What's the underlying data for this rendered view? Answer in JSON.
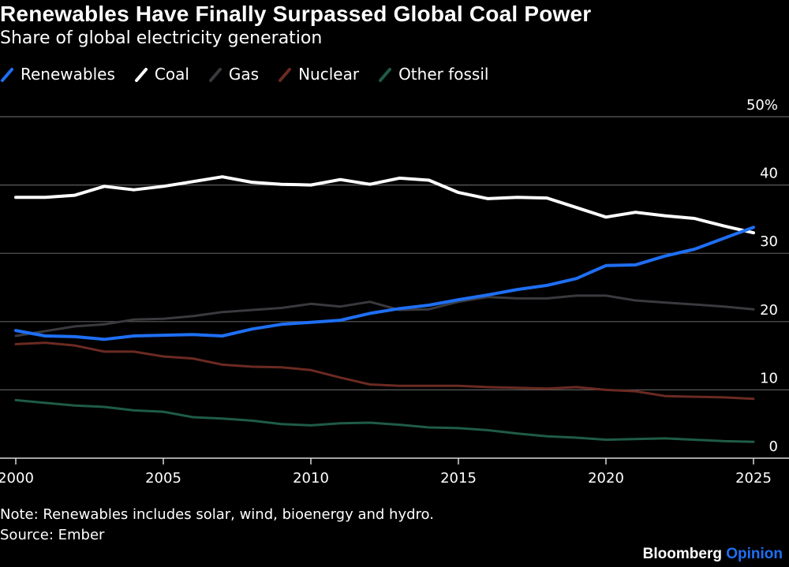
{
  "chart_data": {
    "type": "line",
    "title": "Renewables Have Finally Surpassed Global Coal Power",
    "subtitle": "Share of global electricity generation",
    "x": [
      2000,
      2001,
      2002,
      2003,
      2004,
      2005,
      2006,
      2007,
      2008,
      2009,
      2010,
      2011,
      2012,
      2013,
      2014,
      2015,
      2016,
      2017,
      2018,
      2019,
      2020,
      2021,
      2022,
      2023,
      2024,
      2025
    ],
    "x_ticks": [
      2000,
      2005,
      2010,
      2015,
      2020,
      2025
    ],
    "x_tick_labels": [
      "2000",
      "2005",
      "2010",
      "2015",
      "2020",
      "2025"
    ],
    "ylim": [
      0,
      50
    ],
    "y_ticks": [
      0,
      10,
      20,
      30,
      40,
      50
    ],
    "y_tick_labels": [
      "0",
      "10",
      "20",
      "30",
      "40",
      "50%"
    ],
    "grid": true,
    "legend_position": "top-left",
    "series": [
      {
        "name": "Other fossil",
        "color": "#1f5c45",
        "values": [
          8.5,
          8.1,
          7.7,
          7.5,
          7.0,
          6.8,
          6.0,
          5.8,
          5.5,
          5.0,
          4.8,
          5.1,
          5.2,
          4.9,
          4.5,
          4.4,
          4.1,
          3.6,
          3.2,
          3.0,
          2.7,
          2.8,
          2.9,
          2.7,
          2.5,
          2.4
        ]
      },
      {
        "name": "Nuclear",
        "color": "#6b2a22",
        "values": [
          16.7,
          16.9,
          16.5,
          15.6,
          15.6,
          14.9,
          14.6,
          13.7,
          13.4,
          13.3,
          12.9,
          11.8,
          10.8,
          10.6,
          10.6,
          10.6,
          10.4,
          10.3,
          10.2,
          10.4,
          10.0,
          9.8,
          9.1,
          9.0,
          8.9,
          8.7
        ]
      },
      {
        "name": "Gas",
        "color": "#3a3a3e",
        "values": [
          17.9,
          18.6,
          19.3,
          19.6,
          20.3,
          20.4,
          20.8,
          21.4,
          21.7,
          22.0,
          22.6,
          22.2,
          22.9,
          21.7,
          21.8,
          22.9,
          23.6,
          23.4,
          23.4,
          23.8,
          23.8,
          23.1,
          22.8,
          22.5,
          22.2,
          21.8
        ]
      },
      {
        "name": "Coal",
        "color": "#ffffff",
        "values": [
          38.2,
          38.2,
          38.5,
          39.8,
          39.3,
          39.8,
          40.5,
          41.2,
          40.4,
          40.1,
          40.0,
          40.8,
          40.1,
          41.0,
          40.7,
          38.9,
          38.0,
          38.2,
          38.1,
          36.7,
          35.3,
          36.0,
          35.5,
          35.1,
          34.0,
          33.0
        ]
      },
      {
        "name": "Renewables",
        "color": "#1f6ff4",
        "values": [
          18.7,
          17.9,
          17.8,
          17.4,
          17.9,
          18.0,
          18.1,
          17.9,
          18.9,
          19.6,
          19.9,
          20.2,
          21.2,
          21.9,
          22.4,
          23.2,
          23.9,
          24.7,
          25.3,
          26.3,
          28.2,
          28.3,
          29.6,
          30.6,
          32.2,
          33.8
        ]
      }
    ],
    "note": "Note: Renewables includes solar, wind, bioenergy and hydro.",
    "source": "Source: Ember"
  },
  "legend": [
    {
      "label": "Renewables",
      "color": "#1f6ff4"
    },
    {
      "label": "Coal",
      "color": "#ffffff"
    },
    {
      "label": "Gas",
      "color": "#3a3a3e"
    },
    {
      "label": "Nuclear",
      "color": "#6b2a22"
    },
    {
      "label": "Other fossil",
      "color": "#1f5c45"
    }
  ],
  "branding": {
    "part1": "Bloomberg",
    "part2": "Opinion"
  }
}
